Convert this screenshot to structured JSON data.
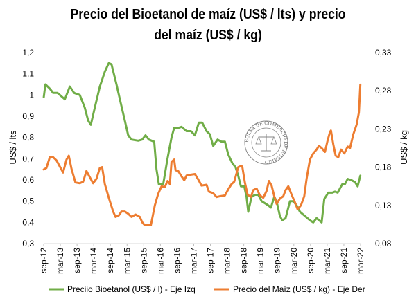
{
  "chart_data": {
    "type": "line",
    "title_lines": [
      "Precio del Bioetanol de maíz (US$ / lts) y precio",
      "del maíz (US$ / kg)"
    ],
    "ylabel_left": "US$ / lts",
    "ylabel_right": "US$ / kg",
    "y_left_range": [
      0.3,
      1.2
    ],
    "y_right_range": [
      0.08,
      0.33
    ],
    "y_left_ticks": [
      "0,3",
      "0,4",
      "0,5",
      "0,6",
      "0,7",
      "0,8",
      "0,9",
      "1",
      "1,1",
      "1,2"
    ],
    "y_right_ticks": [
      "0,08",
      "0,13",
      "0,18",
      "0,23",
      "0,28",
      "0,33"
    ],
    "x_range": [
      2012.667,
      2022.167
    ],
    "x_tick_labels": [
      "sep-12",
      "mar-13",
      "sep-13",
      "mar-14",
      "sep-14",
      "mar-15",
      "sep-15",
      "mar-16",
      "sep-16",
      "mar-17",
      "sep-17",
      "mar-18",
      "sep-18",
      "mar-19",
      "sep-19",
      "mar-20",
      "sep-20",
      "mar-21",
      "sep-21",
      "mar-22"
    ],
    "seal_text": "BOLSA DE COMERCIO DE ROSARIO",
    "series": [
      {
        "name": "Preciio Bioetanol (US$ / l) - Eje Izq",
        "axis": "left",
        "color": "#70AD47",
        "points": [
          [
            2012.67,
            0.99
          ],
          [
            2012.72,
            1.05
          ],
          [
            2012.85,
            1.03
          ],
          [
            2012.95,
            1.01
          ],
          [
            2013.08,
            1.01
          ],
          [
            2013.3,
            0.98
          ],
          [
            2013.45,
            1.04
          ],
          [
            2013.58,
            1.01
          ],
          [
            2013.75,
            1.0
          ],
          [
            2013.9,
            0.94
          ],
          [
            2014.0,
            0.88
          ],
          [
            2014.08,
            0.86
          ],
          [
            2014.2,
            0.94
          ],
          [
            2014.35,
            1.04
          ],
          [
            2014.5,
            1.11
          ],
          [
            2014.62,
            1.15
          ],
          [
            2014.7,
            1.145
          ],
          [
            2014.85,
            1.05
          ],
          [
            2014.98,
            0.96
          ],
          [
            2015.1,
            0.88
          ],
          [
            2015.2,
            0.81
          ],
          [
            2015.3,
            0.79
          ],
          [
            2015.5,
            0.785
          ],
          [
            2015.62,
            0.79
          ],
          [
            2015.72,
            0.81
          ],
          [
            2015.82,
            0.79
          ],
          [
            2015.98,
            0.78
          ],
          [
            2016.05,
            0.65
          ],
          [
            2016.12,
            0.58
          ],
          [
            2016.25,
            0.58
          ],
          [
            2016.38,
            0.7
          ],
          [
            2016.5,
            0.8
          ],
          [
            2016.58,
            0.845
          ],
          [
            2016.7,
            0.845
          ],
          [
            2016.8,
            0.85
          ],
          [
            2016.95,
            0.83
          ],
          [
            2017.08,
            0.83
          ],
          [
            2017.2,
            0.81
          ],
          [
            2017.32,
            0.87
          ],
          [
            2017.42,
            0.87
          ],
          [
            2017.55,
            0.83
          ],
          [
            2017.65,
            0.815
          ],
          [
            2017.75,
            0.76
          ],
          [
            2017.88,
            0.79
          ],
          [
            2018.0,
            0.78
          ],
          [
            2018.1,
            0.78
          ],
          [
            2018.2,
            0.72
          ],
          [
            2018.32,
            0.68
          ],
          [
            2018.42,
            0.66
          ],
          [
            2018.5,
            0.62
          ],
          [
            2018.58,
            0.57
          ],
          [
            2018.68,
            0.57
          ],
          [
            2018.75,
            0.52
          ],
          [
            2018.8,
            0.45
          ],
          [
            2018.9,
            0.52
          ],
          [
            2019.0,
            0.53
          ],
          [
            2019.1,
            0.53
          ],
          [
            2019.2,
            0.5
          ],
          [
            2019.3,
            0.49
          ],
          [
            2019.4,
            0.48
          ],
          [
            2019.48,
            0.47
          ],
          [
            2019.58,
            0.52
          ],
          [
            2019.65,
            0.5
          ],
          [
            2019.75,
            0.43
          ],
          [
            2019.82,
            0.41
          ],
          [
            2019.92,
            0.42
          ],
          [
            2020.05,
            0.5
          ],
          [
            2020.15,
            0.5
          ],
          [
            2020.25,
            0.48
          ],
          [
            2020.35,
            0.45
          ],
          [
            2020.5,
            0.43
          ],
          [
            2020.65,
            0.41
          ],
          [
            2020.75,
            0.4
          ],
          [
            2020.85,
            0.42
          ],
          [
            2021.0,
            0.4
          ],
          [
            2021.08,
            0.51
          ],
          [
            2021.2,
            0.54
          ],
          [
            2021.32,
            0.54
          ],
          [
            2021.4,
            0.545
          ],
          [
            2021.48,
            0.54
          ],
          [
            2021.55,
            0.56
          ],
          [
            2021.62,
            0.58
          ],
          [
            2021.7,
            0.58
          ],
          [
            2021.78,
            0.605
          ],
          [
            2021.88,
            0.6
          ],
          [
            2022.0,
            0.59
          ],
          [
            2022.08,
            0.57
          ],
          [
            2022.16,
            0.62
          ]
        ]
      },
      {
        "name": "Precio del Maíz (US$ / kg) - Eje Der",
        "axis": "right",
        "color": "#ED7D31",
        "points": [
          [
            2012.67,
            0.177
          ],
          [
            2012.75,
            0.179
          ],
          [
            2012.85,
            0.193
          ],
          [
            2012.95,
            0.193
          ],
          [
            2013.05,
            0.189
          ],
          [
            2013.15,
            0.181
          ],
          [
            2013.25,
            0.173
          ],
          [
            2013.35,
            0.19
          ],
          [
            2013.42,
            0.195
          ],
          [
            2013.5,
            0.178
          ],
          [
            2013.62,
            0.16
          ],
          [
            2013.75,
            0.159
          ],
          [
            2013.85,
            0.161
          ],
          [
            2013.95,
            0.175
          ],
          [
            2014.05,
            0.167
          ],
          [
            2014.15,
            0.159
          ],
          [
            2014.25,
            0.165
          ],
          [
            2014.35,
            0.179
          ],
          [
            2014.42,
            0.18
          ],
          [
            2014.5,
            0.158
          ],
          [
            2014.62,
            0.14
          ],
          [
            2014.75,
            0.122
          ],
          [
            2014.82,
            0.115
          ],
          [
            2014.92,
            0.117
          ],
          [
            2015.0,
            0.122
          ],
          [
            2015.1,
            0.122
          ],
          [
            2015.2,
            0.119
          ],
          [
            2015.3,
            0.115
          ],
          [
            2015.42,
            0.118
          ],
          [
            2015.55,
            0.115
          ],
          [
            2015.62,
            0.108
          ],
          [
            2015.7,
            0.104
          ],
          [
            2015.88,
            0.104
          ],
          [
            2016.0,
            0.13
          ],
          [
            2016.1,
            0.145
          ],
          [
            2016.2,
            0.155
          ],
          [
            2016.3,
            0.154
          ],
          [
            2016.38,
            0.162
          ],
          [
            2016.45,
            0.158
          ],
          [
            2016.5,
            0.187
          ],
          [
            2016.58,
            0.19
          ],
          [
            2016.62,
            0.176
          ],
          [
            2016.7,
            0.175
          ],
          [
            2016.8,
            0.168
          ],
          [
            2016.88,
            0.163
          ],
          [
            2016.95,
            0.169
          ],
          [
            2017.05,
            0.17
          ],
          [
            2017.2,
            0.171
          ],
          [
            2017.3,
            0.164
          ],
          [
            2017.4,
            0.156
          ],
          [
            2017.55,
            0.157
          ],
          [
            2017.62,
            0.148
          ],
          [
            2017.75,
            0.146
          ],
          [
            2017.85,
            0.141
          ],
          [
            2017.95,
            0.142
          ],
          [
            2018.1,
            0.143
          ],
          [
            2018.2,
            0.151
          ],
          [
            2018.3,
            0.158
          ],
          [
            2018.38,
            0.161
          ],
          [
            2018.5,
            0.18
          ],
          [
            2018.55,
            0.181
          ],
          [
            2018.62,
            0.181
          ],
          [
            2018.7,
            0.16
          ],
          [
            2018.78,
            0.144
          ],
          [
            2018.88,
            0.141
          ],
          [
            2018.95,
            0.15
          ],
          [
            2019.05,
            0.152
          ],
          [
            2019.15,
            0.143
          ],
          [
            2019.25,
            0.14
          ],
          [
            2019.35,
            0.149
          ],
          [
            2019.42,
            0.162
          ],
          [
            2019.5,
            0.156
          ],
          [
            2019.58,
            0.142
          ],
          [
            2019.65,
            0.132
          ],
          [
            2019.75,
            0.139
          ],
          [
            2019.85,
            0.142
          ],
          [
            2019.92,
            0.15
          ],
          [
            2020.0,
            0.155
          ],
          [
            2020.1,
            0.144
          ],
          [
            2020.2,
            0.134
          ],
          [
            2020.28,
            0.125
          ],
          [
            2020.38,
            0.13
          ],
          [
            2020.48,
            0.142
          ],
          [
            2020.55,
            0.165
          ],
          [
            2020.65,
            0.19
          ],
          [
            2020.75,
            0.198
          ],
          [
            2020.85,
            0.203
          ],
          [
            2020.92,
            0.208
          ],
          [
            2021.0,
            0.205
          ],
          [
            2021.1,
            0.2
          ],
          [
            2021.18,
            0.215
          ],
          [
            2021.25,
            0.226
          ],
          [
            2021.28,
            0.228
          ],
          [
            2021.35,
            0.21
          ],
          [
            2021.42,
            0.195
          ],
          [
            2021.5,
            0.193
          ],
          [
            2021.58,
            0.203
          ],
          [
            2021.68,
            0.198
          ],
          [
            2021.78,
            0.207
          ],
          [
            2021.85,
            0.205
          ],
          [
            2021.95,
            0.223
          ],
          [
            2022.05,
            0.236
          ],
          [
            2022.12,
            0.252
          ],
          [
            2022.16,
            0.288
          ]
        ]
      }
    ]
  }
}
